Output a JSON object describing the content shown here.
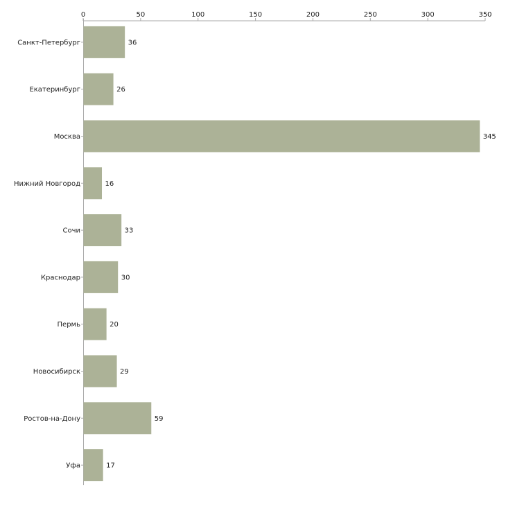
{
  "chart_data": {
    "type": "bar",
    "orientation": "horizontal",
    "title": "",
    "xlabel": "",
    "ylabel": "",
    "xlim": [
      0,
      350
    ],
    "ticks": [
      0,
      50,
      100,
      150,
      200,
      250,
      300,
      350
    ],
    "tick_labels": [
      "0",
      "50",
      "100",
      "150",
      "200",
      "250",
      "300",
      "350"
    ],
    "axis_position": "top",
    "grid": false,
    "categories": [
      "Санкт-Петербург",
      "Екатеринбург",
      "Москва",
      "Нижний Новгород",
      "Сочи",
      "Краснодар",
      "Пермь",
      "Новосибирск",
      "Ростов-на-Дону",
      "Уфа"
    ],
    "values": [
      36,
      26,
      345,
      16,
      33,
      30,
      20,
      29,
      59,
      17
    ],
    "value_labels": [
      "36",
      "26",
      "345",
      "16",
      "33",
      "30",
      "20",
      "29",
      "59",
      "17"
    ],
    "colors": {
      "bar": "#acb297",
      "axis": "#aaaaaa",
      "text": "#222222"
    }
  }
}
